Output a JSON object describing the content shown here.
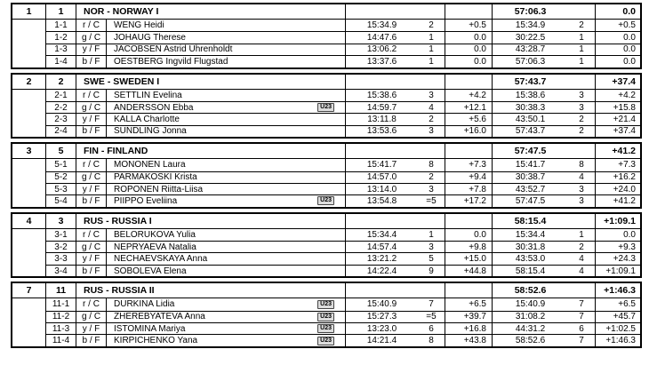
{
  "results": {
    "u23_label": "U23",
    "blocks": [
      {
        "rank": "1",
        "bib": "1",
        "team": "NOR - NORWAY I",
        "total_time": "57:06.3",
        "total_diff": "0.0",
        "legs": [
          {
            "leg": "1-1",
            "tech": "r / C",
            "name": "WENG Heidi",
            "u23": false,
            "leg_time": "15:34.9",
            "leg_rank": "2",
            "leg_diff": "+0.5",
            "cum_time": "15:34.9",
            "cum_rank": "2",
            "cum_diff": "+0.5"
          },
          {
            "leg": "1-2",
            "tech": "g / C",
            "name": "JOHAUG Therese",
            "u23": false,
            "leg_time": "14:47.6",
            "leg_rank": "1",
            "leg_diff": "0.0",
            "cum_time": "30:22.5",
            "cum_rank": "1",
            "cum_diff": "0.0"
          },
          {
            "leg": "1-3",
            "tech": "y / F",
            "name": "JACOBSEN Astrid Uhrenholdt",
            "u23": false,
            "leg_time": "13:06.2",
            "leg_rank": "1",
            "leg_diff": "0.0",
            "cum_time": "43:28.7",
            "cum_rank": "1",
            "cum_diff": "0.0"
          },
          {
            "leg": "1-4",
            "tech": "b / F",
            "name": "OESTBERG Ingvild Flugstad",
            "u23": false,
            "leg_time": "13:37.6",
            "leg_rank": "1",
            "leg_diff": "0.0",
            "cum_time": "57:06.3",
            "cum_rank": "1",
            "cum_diff": "0.0"
          }
        ]
      },
      {
        "rank": "2",
        "bib": "2",
        "team": "SWE - SWEDEN I",
        "total_time": "57:43.7",
        "total_diff": "+37.4",
        "legs": [
          {
            "leg": "2-1",
            "tech": "r / C",
            "name": "SETTLIN Evelina",
            "u23": false,
            "leg_time": "15:38.6",
            "leg_rank": "3",
            "leg_diff": "+4.2",
            "cum_time": "15:38.6",
            "cum_rank": "3",
            "cum_diff": "+4.2"
          },
          {
            "leg": "2-2",
            "tech": "g / C",
            "name": "ANDERSSON Ebba",
            "u23": true,
            "leg_time": "14:59.7",
            "leg_rank": "4",
            "leg_diff": "+12.1",
            "cum_time": "30:38.3",
            "cum_rank": "3",
            "cum_diff": "+15.8"
          },
          {
            "leg": "2-3",
            "tech": "y / F",
            "name": "KALLA Charlotte",
            "u23": false,
            "leg_time": "13:11.8",
            "leg_rank": "2",
            "leg_diff": "+5.6",
            "cum_time": "43:50.1",
            "cum_rank": "2",
            "cum_diff": "+21.4"
          },
          {
            "leg": "2-4",
            "tech": "b / F",
            "name": "SUNDLING Jonna",
            "u23": false,
            "leg_time": "13:53.6",
            "leg_rank": "3",
            "leg_diff": "+16.0",
            "cum_time": "57:43.7",
            "cum_rank": "2",
            "cum_diff": "+37.4"
          }
        ]
      },
      {
        "rank": "3",
        "bib": "5",
        "team": "FIN - FINLAND",
        "total_time": "57:47.5",
        "total_diff": "+41.2",
        "legs": [
          {
            "leg": "5-1",
            "tech": "r / C",
            "name": "MONONEN Laura",
            "u23": false,
            "leg_time": "15:41.7",
            "leg_rank": "8",
            "leg_diff": "+7.3",
            "cum_time": "15:41.7",
            "cum_rank": "8",
            "cum_diff": "+7.3"
          },
          {
            "leg": "5-2",
            "tech": "g / C",
            "name": "PARMAKOSKI Krista",
            "u23": false,
            "leg_time": "14:57.0",
            "leg_rank": "2",
            "leg_diff": "+9.4",
            "cum_time": "30:38.7",
            "cum_rank": "4",
            "cum_diff": "+16.2"
          },
          {
            "leg": "5-3",
            "tech": "y / F",
            "name": "ROPONEN Riitta-Liisa",
            "u23": false,
            "leg_time": "13:14.0",
            "leg_rank": "3",
            "leg_diff": "+7.8",
            "cum_time": "43:52.7",
            "cum_rank": "3",
            "cum_diff": "+24.0"
          },
          {
            "leg": "5-4",
            "tech": "b / F",
            "name": "PIIPPO Eveliina",
            "u23": true,
            "leg_time": "13:54.8",
            "leg_rank": "=5",
            "leg_diff": "+17.2",
            "cum_time": "57:47.5",
            "cum_rank": "3",
            "cum_diff": "+41.2"
          }
        ]
      },
      {
        "rank": "4",
        "bib": "3",
        "team": "RUS - RUSSIA I",
        "total_time": "58:15.4",
        "total_diff": "+1:09.1",
        "legs": [
          {
            "leg": "3-1",
            "tech": "r / C",
            "name": "BELORUKOVA Yulia",
            "u23": false,
            "leg_time": "15:34.4",
            "leg_rank": "1",
            "leg_diff": "0.0",
            "cum_time": "15:34.4",
            "cum_rank": "1",
            "cum_diff": "0.0"
          },
          {
            "leg": "3-2",
            "tech": "g / C",
            "name": "NEPRYAEVA Natalia",
            "u23": false,
            "leg_time": "14:57.4",
            "leg_rank": "3",
            "leg_diff": "+9.8",
            "cum_time": "30:31.8",
            "cum_rank": "2",
            "cum_diff": "+9.3"
          },
          {
            "leg": "3-3",
            "tech": "y / F",
            "name": "NECHAEVSKAYA Anna",
            "u23": false,
            "leg_time": "13:21.2",
            "leg_rank": "5",
            "leg_diff": "+15.0",
            "cum_time": "43:53.0",
            "cum_rank": "4",
            "cum_diff": "+24.3"
          },
          {
            "leg": "3-4",
            "tech": "b / F",
            "name": "SOBOLEVA Elena",
            "u23": false,
            "leg_time": "14:22.4",
            "leg_rank": "9",
            "leg_diff": "+44.8",
            "cum_time": "58:15.4",
            "cum_rank": "4",
            "cum_diff": "+1:09.1"
          }
        ]
      },
      {
        "rank": "7",
        "bib": "11",
        "team": "RUS - RUSSIA II",
        "total_time": "58:52.6",
        "total_diff": "+1:46.3",
        "legs": [
          {
            "leg": "11-1",
            "tech": "r / C",
            "name": "DURKINA Lidia",
            "u23": true,
            "leg_time": "15:40.9",
            "leg_rank": "7",
            "leg_diff": "+6.5",
            "cum_time": "15:40.9",
            "cum_rank": "7",
            "cum_diff": "+6.5"
          },
          {
            "leg": "11-2",
            "tech": "g / C",
            "name": "ZHEREBYATEVA Anna",
            "u23": true,
            "leg_time": "15:27.3",
            "leg_rank": "=5",
            "leg_diff": "+39.7",
            "cum_time": "31:08.2",
            "cum_rank": "7",
            "cum_diff": "+45.7"
          },
          {
            "leg": "11-3",
            "tech": "y / F",
            "name": "ISTOMINA Mariya",
            "u23": true,
            "leg_time": "13:23.0",
            "leg_rank": "6",
            "leg_diff": "+16.8",
            "cum_time": "44:31.2",
            "cum_rank": "6",
            "cum_diff": "+1:02.5"
          },
          {
            "leg": "11-4",
            "tech": "b / F",
            "name": "KIRPICHENKO Yana",
            "u23": true,
            "leg_time": "14:21.4",
            "leg_rank": "8",
            "leg_diff": "+43.8",
            "cum_time": "58:52.6",
            "cum_rank": "7",
            "cum_diff": "+1:46.3"
          }
        ]
      }
    ]
  }
}
